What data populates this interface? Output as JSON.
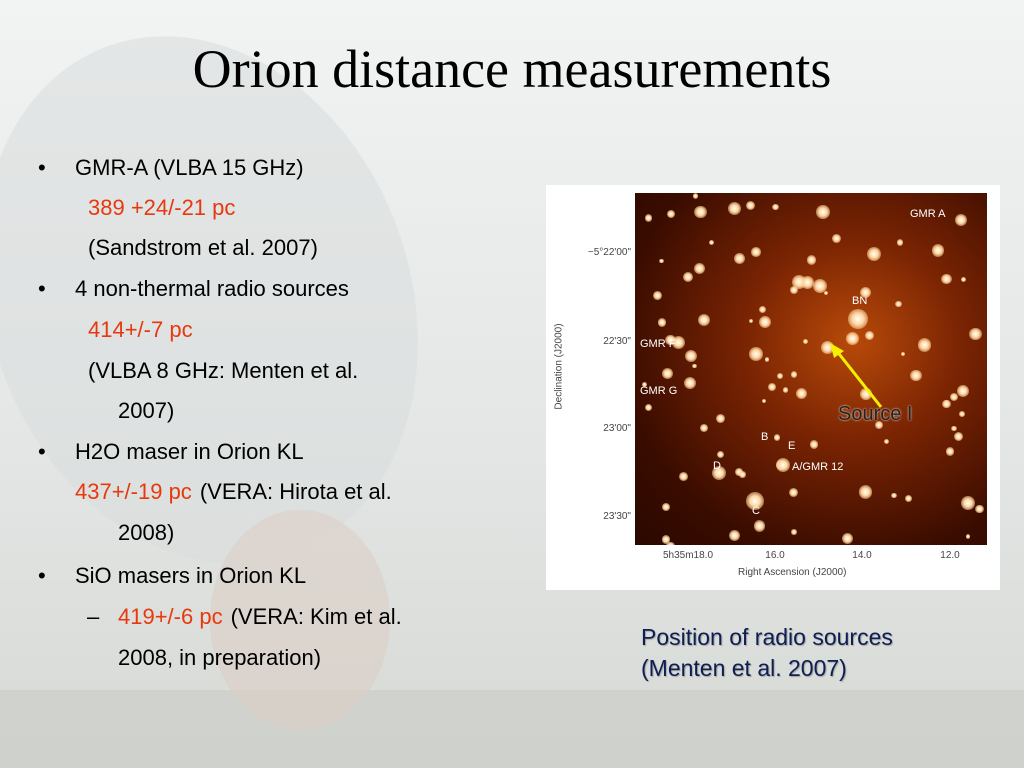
{
  "title": "Orion distance measurements",
  "lines": [
    {
      "bullet": "•",
      "text": "GMR-A (VLBA 15 GHz)"
    },
    {
      "highlight": "389 +24/-21 pc"
    },
    {
      "text": "(Sandstrom et al. 2007)"
    },
    {
      "bullet": "•",
      "text": "4 non-thermal radio sources"
    },
    {
      "highlight": "414+/-7 pc"
    },
    {
      "text": "(VLBA 8 GHz: Menten et al."
    },
    {
      "text": "2007)"
    },
    {
      "bullet": "•",
      "text": "H2O maser in Orion KL"
    },
    {
      "highlight": "437+/-19 pc",
      "text": "(VERA: Hirota et al."
    },
    {
      "text": "2008)"
    },
    {
      "bullet": "•",
      "text": "SiO masers in Orion KL"
    },
    {
      "bullet": "–",
      "highlight": "419+/-6 pc",
      "text": "(VERA: Kim et al."
    },
    {
      "text": "2008, in preparation)"
    }
  ],
  "figure": {
    "y_axis_label": "Declination (J2000)",
    "x_axis_label": "Right Ascension (J2000)",
    "y_tick_labels": [
      "−5°22'00\"",
      "22'30\"",
      "23'00\"",
      "23'30\""
    ],
    "x_tick_labels": [
      "5h35m18.0",
      "16.0",
      "14.0",
      "12.0"
    ],
    "sources": [
      "GMR A",
      "BN",
      "GMR F",
      "GMR G",
      "B",
      "E",
      "D",
      "A/GMR 12",
      "C"
    ],
    "annotation": "Source I"
  },
  "caption": [
    "Position of radio sources",
    "(Menten et al. 2007)"
  ]
}
